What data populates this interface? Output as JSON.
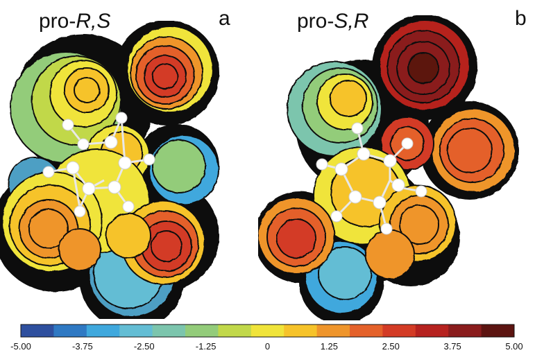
{
  "panels": [
    {
      "letter": "a",
      "prefix": "pro-",
      "config": "R,S"
    },
    {
      "letter": "b",
      "prefix": "pro-",
      "config": "S,R"
    }
  ],
  "colorbar": {
    "ticks": [
      "-5.00",
      "-3.75",
      "-2.50",
      "-1.25",
      "0",
      "1.25",
      "2.50",
      "3.75",
      "5.00"
    ],
    "range": [
      -5.0,
      5.0
    ],
    "colors": [
      "#2e4f9e",
      "#2f79c3",
      "#3fa8dd",
      "#63bdd4",
      "#7cc5ad",
      "#93cc7a",
      "#c1d84a",
      "#f0e43a",
      "#f6c32a",
      "#ef952b",
      "#e4612a",
      "#d33b25",
      "#b6221f",
      "#8a1c1d",
      "#5c1411"
    ]
  }
}
